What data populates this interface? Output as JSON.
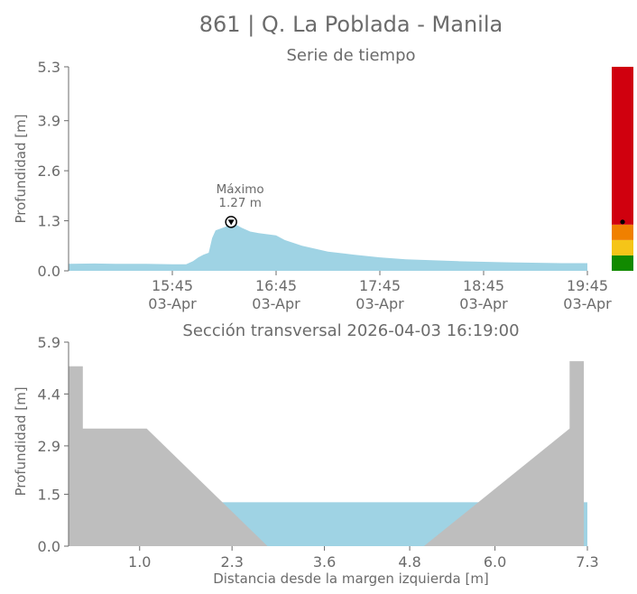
{
  "figure": {
    "title": "861 | Q. La Poblada - Manila"
  },
  "colors": {
    "water": "#9fd3e4",
    "terrain": "#bebebe",
    "axis": "#6b6b6b",
    "level_red": "#d0000e",
    "level_orange": "#f08000",
    "level_yellow": "#f5c518",
    "level_green": "#118a00"
  },
  "chart_data": [
    {
      "type": "area",
      "title": "Serie de tiempo",
      "xlabel": "",
      "ylabel": "Profundidad [m]",
      "ylim": [
        0.0,
        5.3
      ],
      "yticks": [
        "0.0",
        "1.3",
        "2.6",
        "3.9",
        "5.3"
      ],
      "xticks": [
        {
          "time": "15:45",
          "date": "03-Apr"
        },
        {
          "time": "16:45",
          "date": "03-Apr"
        },
        {
          "time": "17:45",
          "date": "03-Apr"
        },
        {
          "time": "18:45",
          "date": "03-Apr"
        },
        {
          "time": "19:45",
          "date": "03-Apr"
        }
      ],
      "x_range": [
        "2026-04-03 14:45",
        "2026-04-03 19:45"
      ],
      "x": [
        "14:45",
        "15:00",
        "15:15",
        "15:30",
        "15:45",
        "15:53",
        "15:57",
        "16:00",
        "16:03",
        "16:06",
        "16:08",
        "16:10",
        "16:13",
        "16:16",
        "16:19",
        "16:25",
        "16:30",
        "16:35",
        "16:45",
        "16:50",
        "17:00",
        "17:15",
        "17:30",
        "17:45",
        "18:00",
        "18:30",
        "19:00",
        "19:30",
        "19:45"
      ],
      "y": [
        0.18,
        0.19,
        0.18,
        0.18,
        0.17,
        0.17,
        0.25,
        0.35,
        0.42,
        0.47,
        0.85,
        1.05,
        1.1,
        1.15,
        1.27,
        1.12,
        1.02,
        0.98,
        0.92,
        0.8,
        0.65,
        0.5,
        0.42,
        0.35,
        0.3,
        0.25,
        0.22,
        0.2,
        0.2
      ],
      "max_annotation": {
        "label": "Máximo",
        "value": "1.27 m",
        "time": "16:19",
        "y": 1.27
      },
      "level_bar": {
        "current_value": 1.27,
        "levels": [
          {
            "color": "green",
            "from": 0.0,
            "to": 0.4
          },
          {
            "color": "yellow",
            "from": 0.4,
            "to": 0.8
          },
          {
            "color": "orange",
            "from": 0.8,
            "to": 1.2
          },
          {
            "color": "red",
            "from": 1.2,
            "to": 5.3
          }
        ]
      }
    },
    {
      "type": "area",
      "title": "Sección transversal 2026-04-03 16:19:00",
      "xlabel": "Distancia desde la margen izquierda [m]",
      "ylabel": "Profundidad [m]",
      "xlim": [
        0.0,
        7.3
      ],
      "ylim": [
        0.0,
        5.9
      ],
      "xticks": [
        "1.0",
        "2.3",
        "3.6",
        "4.8",
        "6.0",
        "7.3"
      ],
      "yticks": [
        "0.0",
        "1.5",
        "2.9",
        "4.4",
        "5.9"
      ],
      "terrain": {
        "x": [
          0.0,
          0.0,
          0.2,
          0.2,
          1.1,
          2.8,
          5.0,
          7.05,
          7.05,
          7.25,
          7.25
        ],
        "y": [
          0.0,
          5.2,
          5.2,
          3.4,
          3.4,
          0.0,
          0.0,
          3.4,
          5.35,
          5.35,
          0.0
        ]
      },
      "water_level": 1.27
    }
  ]
}
